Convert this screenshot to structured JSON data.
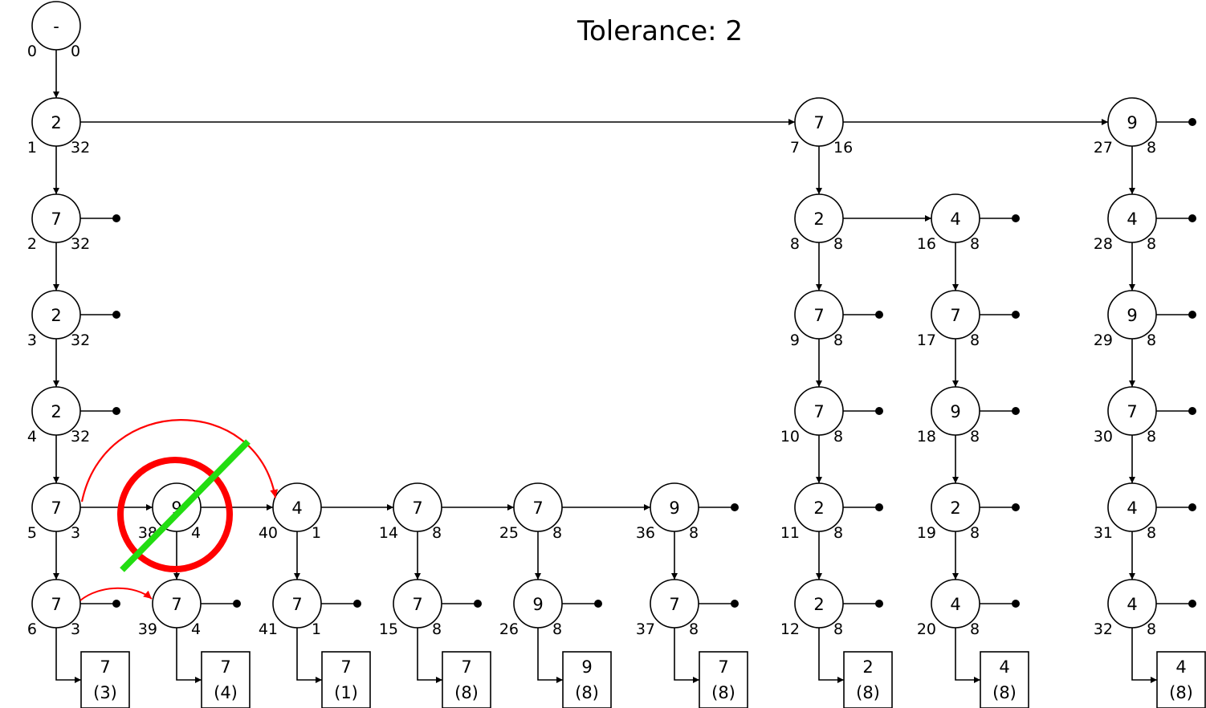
{
  "title": "Tolerance: 2",
  "colors": {
    "line": "#000000",
    "highlight_arrow": "#ff0000",
    "deleted_circle": "#ff0000",
    "strike": "#22dd11"
  },
  "nodes": [
    {
      "id": "n0",
      "label": "-",
      "left": "0",
      "right": "0"
    },
    {
      "id": "n1",
      "label": "2",
      "left": "1",
      "right": "32"
    },
    {
      "id": "n2",
      "label": "7",
      "left": "2",
      "right": "32"
    },
    {
      "id": "n3",
      "label": "2",
      "left": "3",
      "right": "32"
    },
    {
      "id": "n4",
      "label": "2",
      "left": "4",
      "right": "32"
    },
    {
      "id": "n5",
      "label": "7",
      "left": "5",
      "right": "3"
    },
    {
      "id": "n6",
      "label": "7",
      "left": "6",
      "right": "3"
    },
    {
      "id": "n38",
      "label": "9",
      "left": "38",
      "right": "4"
    },
    {
      "id": "n39",
      "label": "7",
      "left": "39",
      "right": "4"
    },
    {
      "id": "n40",
      "label": "4",
      "left": "40",
      "right": "1"
    },
    {
      "id": "n41",
      "label": "7",
      "left": "41",
      "right": "1"
    },
    {
      "id": "n14",
      "label": "7",
      "left": "14",
      "right": "8"
    },
    {
      "id": "n15",
      "label": "7",
      "left": "15",
      "right": "8"
    },
    {
      "id": "n25",
      "label": "7",
      "left": "25",
      "right": "8"
    },
    {
      "id": "n26",
      "label": "9",
      "left": "26",
      "right": "8"
    },
    {
      "id": "n36",
      "label": "9",
      "left": "36",
      "right": "8"
    },
    {
      "id": "n37",
      "label": "7",
      "left": "37",
      "right": "8"
    },
    {
      "id": "n7",
      "label": "7",
      "left": "7",
      "right": "16"
    },
    {
      "id": "n8",
      "label": "2",
      "left": "8",
      "right": "8"
    },
    {
      "id": "n9",
      "label": "7",
      "left": "9",
      "right": "8"
    },
    {
      "id": "n10",
      "label": "7",
      "left": "10",
      "right": "8"
    },
    {
      "id": "n11",
      "label": "2",
      "left": "11",
      "right": "8"
    },
    {
      "id": "n12",
      "label": "2",
      "left": "12",
      "right": "8"
    },
    {
      "id": "n16",
      "label": "4",
      "left": "16",
      "right": "8"
    },
    {
      "id": "n17",
      "label": "7",
      "left": "17",
      "right": "8"
    },
    {
      "id": "n18",
      "label": "9",
      "left": "18",
      "right": "8"
    },
    {
      "id": "n19",
      "label": "2",
      "left": "19",
      "right": "8"
    },
    {
      "id": "n20",
      "label": "4",
      "left": "20",
      "right": "8"
    },
    {
      "id": "n27",
      "label": "9",
      "left": "27",
      "right": "8"
    },
    {
      "id": "n28",
      "label": "4",
      "left": "28",
      "right": "8"
    },
    {
      "id": "n29",
      "label": "9",
      "left": "29",
      "right": "8"
    },
    {
      "id": "n30",
      "label": "7",
      "left": "30",
      "right": "8"
    },
    {
      "id": "n31",
      "label": "4",
      "left": "31",
      "right": "8"
    },
    {
      "id": "n32",
      "label": "4",
      "left": "32",
      "right": "8"
    }
  ],
  "boxes": [
    {
      "id": "b6",
      "label": "7",
      "count": "(3)"
    },
    {
      "id": "b39",
      "label": "7",
      "count": "(4)"
    },
    {
      "id": "b41",
      "label": "7",
      "count": "(1)"
    },
    {
      "id": "b15",
      "label": "7",
      "count": "(8)"
    },
    {
      "id": "b26",
      "label": "9",
      "count": "(8)"
    },
    {
      "id": "b37",
      "label": "7",
      "count": "(8)"
    },
    {
      "id": "b12",
      "label": "2",
      "count": "(8)"
    },
    {
      "id": "b20",
      "label": "4",
      "count": "(8)"
    },
    {
      "id": "b32",
      "label": "4",
      "count": "(8)"
    }
  ]
}
